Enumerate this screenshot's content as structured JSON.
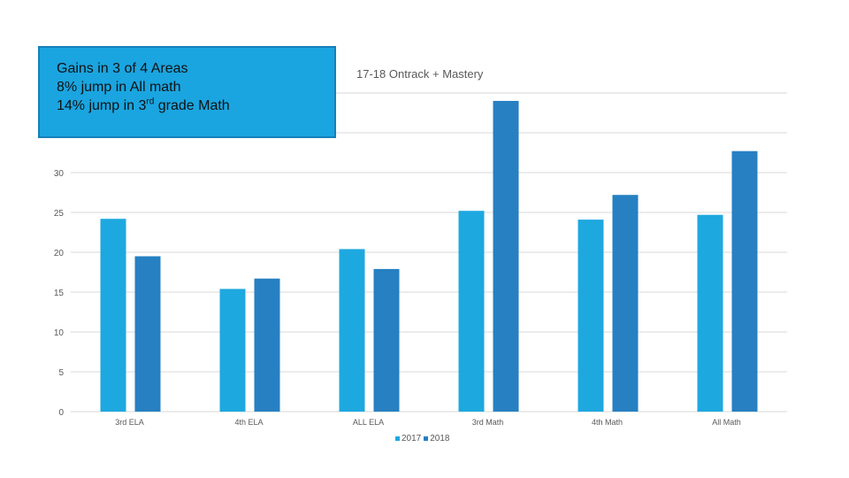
{
  "callout": {
    "line1": "Gains in 3 of 4 Areas",
    "line2": "8% jump in All math",
    "line3_pre": "14% jump in 3",
    "line3_sup": "rd",
    "line3_post": " grade Math"
  },
  "colors": {
    "series_2017": "#1ea8e0",
    "series_2018": "#2680c2",
    "gridline": "#d9d9d9",
    "callout_bg": "#1aa5e0"
  },
  "chart_data": {
    "type": "bar",
    "title": "17-18 Ontrack + Mastery",
    "categories": [
      "3rd ELA",
      "4th ELA",
      "ALL ELA",
      "3rd Math",
      "4th Math",
      "All Math"
    ],
    "series": [
      {
        "name": "2017",
        "values": [
          24.2,
          15.4,
          20.4,
          25.2,
          24.1,
          24.7
        ]
      },
      {
        "name": "2018",
        "values": [
          19.5,
          16.7,
          17.9,
          39.0,
          27.2,
          32.7
        ]
      }
    ],
    "y_ticks": [
      "0",
      "5",
      "10",
      "15",
      "20",
      "25",
      "30",
      "35"
    ],
    "ylim": [
      0,
      40
    ],
    "grid": true,
    "legend_position": "bottom"
  }
}
